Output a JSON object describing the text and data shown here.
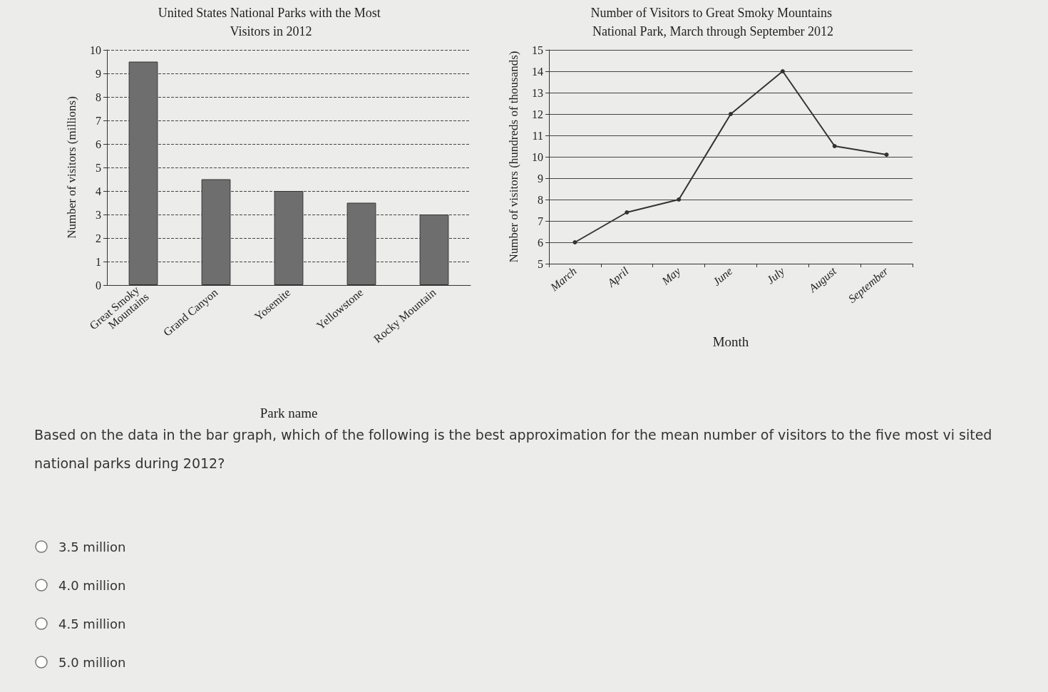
{
  "chart_data": [
    {
      "type": "bar",
      "title": "United States National Parks with the Most Visitors in 2012",
      "xlabel": "Park name",
      "ylabel": "Number of visitors (millions)",
      "categories": [
        "Great Smoky Mountains",
        "Grand Canyon",
        "Yosemite",
        "Yellowstone",
        "Rocky Mountain"
      ],
      "values": [
        9.5,
        4.5,
        4,
        3.5,
        3
      ],
      "color": "#6e6e6e",
      "ylim": [
        0,
        10
      ],
      "yticks": [
        0,
        1,
        2,
        3,
        4,
        5,
        6,
        7,
        8,
        9,
        10
      ],
      "grid": "y"
    },
    {
      "type": "line",
      "title": "Number of Visitors to Great Smoky Mountains National Park, March through September 2012",
      "xlabel": "Month",
      "ylabel": "Number of visitors (hundreds of thousands)",
      "categories": [
        "March",
        "April",
        "May",
        "June",
        "July",
        "August",
        "September"
      ],
      "values": [
        6,
        7.4,
        8,
        12,
        14,
        10.5,
        10.1
      ],
      "color": "#333333",
      "ylim": [
        5,
        15
      ],
      "yticks": [
        5,
        6,
        7,
        8,
        9,
        10,
        11,
        12,
        13,
        14,
        15
      ],
      "grid": "y",
      "marker": "circle",
      "line_style": "solid"
    },
    {
      "type": "other",
      "annotations": [
        "Based on the data in the bar graph, which of the following is the best approximation for the mean number of visitors to the five most vi sited national parks during 2012?",
        "3.5 million",
        "4.0 million",
        "4.5 million",
        "5.0 million"
      ]
    }
  ]
}
